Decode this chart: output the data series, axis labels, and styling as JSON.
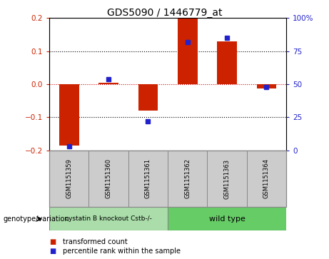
{
  "title": "GDS5090 / 1446779_at",
  "samples": [
    "GSM1151359",
    "GSM1151360",
    "GSM1151361",
    "GSM1151362",
    "GSM1151363",
    "GSM1151364"
  ],
  "red_values": [
    -0.185,
    0.005,
    -0.08,
    0.2,
    0.13,
    -0.012
  ],
  "blue_values": [
    3,
    54,
    22,
    82,
    85,
    48
  ],
  "ylim_left": [
    -0.2,
    0.2
  ],
  "ylim_right": [
    0,
    100
  ],
  "yticks_left": [
    -0.2,
    -0.1,
    0.0,
    0.1,
    0.2
  ],
  "yticks_right": [
    0,
    25,
    50,
    75,
    100
  ],
  "ytick_labels_right": [
    "0",
    "25",
    "50",
    "75",
    "100%"
  ],
  "red_color": "#cc2200",
  "blue_color": "#2222cc",
  "dashed_color": "#cc0000",
  "dotted_color": "#000000",
  "group1_label": "cystatin B knockout Cstb-/-",
  "group2_label": "wild type",
  "group1_color": "#aaddaa",
  "group2_color": "#66cc66",
  "genotype_label": "genotype/variation",
  "legend_red": "transformed count",
  "legend_blue": "percentile rank within the sample",
  "bar_width": 0.5,
  "sample_bg_color": "#cccccc",
  "plot_bg_color": "#ffffff",
  "border_color": "#888888"
}
